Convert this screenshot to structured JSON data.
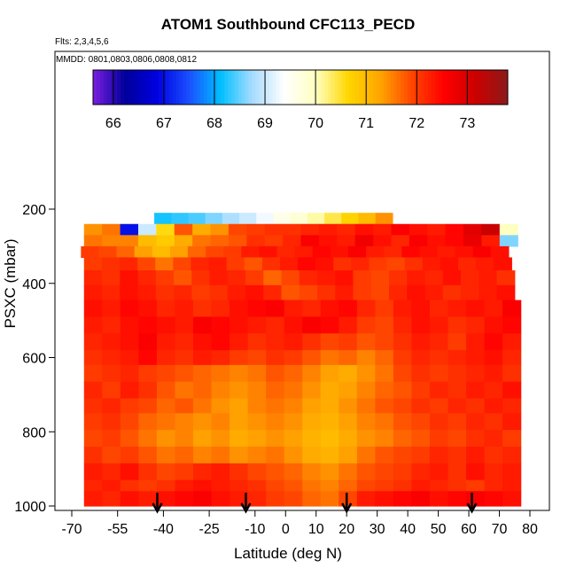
{
  "header": {
    "title": "ATOM1 Southbound CFC113_PECD",
    "flights": "Flts: 2,3,4,5,6",
    "dates": "MMDD: 0801,0803,0806,0808,0812"
  },
  "chart_data": {
    "type": "heatmap",
    "title": "ATOM1 Southbound CFC113_PECD",
    "xlabel": "Latitude (deg N)",
    "ylabel": "PSXC (mbar)",
    "xlim": [
      -70,
      80
    ],
    "ylim": [
      1000,
      0
    ],
    "x_ticks": [
      -70,
      -55,
      -40,
      -25,
      -10,
      0,
      10,
      20,
      30,
      40,
      50,
      60,
      70,
      80
    ],
    "y_ticks": [
      200,
      400,
      600,
      800,
      1000
    ],
    "colorbar": {
      "ticks": [
        66,
        67,
        68,
        69,
        70,
        71,
        72,
        73
      ],
      "range": [
        65.6,
        73.8
      ],
      "colors": [
        "#7b1fe0",
        "#00009a",
        "#0000e0",
        "#1a4fff",
        "#00bfff",
        "#a8dcff",
        "#ffffff",
        "#ffffbf",
        "#ffd700",
        "#ffa500",
        "#ff4500",
        "#ff0000",
        "#cc0000",
        "#8b1a1a"
      ]
    },
    "arrows_latitude": [
      -42,
      -13,
      20,
      61
    ],
    "layers": [
      {
        "p_top": 210,
        "p_bot": 240,
        "lat_min": -43,
        "lat_max": 35,
        "cells": [
          68.2,
          68.3,
          68.4,
          68.6,
          68.8,
          69.0,
          69.3,
          69.6,
          69.8,
          70.1,
          70.4,
          70.7,
          71.0,
          71.4
        ]
      },
      {
        "p_top": 240,
        "p_bot": 270,
        "lat_min": -66,
        "lat_max": 76,
        "cells": [
          71.4,
          71.6,
          67.0,
          69.0,
          70.6,
          71.8,
          71.2,
          71.4,
          71.9,
          72.0,
          72.1,
          72.1,
          72.2,
          72.3,
          72.2,
          72.4,
          72.3,
          72.6,
          72.4,
          72.3,
          72.5,
          72.9,
          73.2,
          70.0
        ]
      },
      {
        "p_top": 270,
        "p_bot": 300,
        "lat_min": -66,
        "lat_max": 76,
        "cells": [
          71.6,
          71.5,
          71.5,
          71.0,
          70.8,
          71.2,
          71.6,
          71.7,
          71.8,
          72.1,
          72.0,
          72.2,
          72.6,
          72.4,
          72.3,
          72.7,
          72.4,
          72.2,
          72.6,
          72.4,
          72.5,
          72.8,
          72.3,
          68.6
        ]
      },
      {
        "p_top": 300,
        "p_bot": 330,
        "lat_min": -67,
        "lat_max": 73,
        "cells": [
          72.0,
          71.9,
          71.7,
          71.3,
          71.0,
          71.3,
          71.7,
          71.9,
          72.0,
          72.3,
          72.4,
          72.2,
          72.3,
          72.5,
          72.4,
          72.6,
          72.3,
          72.2,
          72.5,
          72.4,
          72.3,
          72.4,
          72.6,
          72.4
        ]
      },
      {
        "p_top": 330,
        "p_bot": 365,
        "lat_min": -66,
        "lat_max": 74,
        "cells": [
          72.0,
          72.1,
          72.2,
          71.9,
          71.6,
          71.9,
          72.2,
          72.3,
          72.0,
          71.8,
          72.1,
          72.3,
          72.5,
          72.4,
          72.1,
          72.2,
          72.0,
          71.9,
          72.1,
          72.3,
          72.4,
          72.2,
          72.3,
          72.4
        ]
      },
      {
        "p_top": 365,
        "p_bot": 405,
        "lat_min": -66,
        "lat_max": 75,
        "cells": [
          72.2,
          72.1,
          72.4,
          72.2,
          72.0,
          71.8,
          72.1,
          72.3,
          72.2,
          72.0,
          71.7,
          71.9,
          72.2,
          72.3,
          72.4,
          72.0,
          71.9,
          72.1,
          72.3,
          72.2,
          72.4,
          72.2,
          72.3,
          72.1
        ]
      },
      {
        "p_top": 405,
        "p_bot": 445,
        "lat_min": -66,
        "lat_max": 75,
        "cells": [
          72.3,
          72.2,
          72.4,
          72.3,
          72.1,
          72.2,
          72.0,
          72.1,
          72.3,
          72.4,
          72.2,
          71.8,
          71.9,
          72.1,
          72.3,
          72.0,
          71.9,
          72.2,
          72.4,
          72.3,
          72.1,
          72.2,
          72.3,
          72.4
        ]
      },
      {
        "p_top": 445,
        "p_bot": 490,
        "lat_min": -66,
        "lat_max": 77,
        "cells": [
          72.4,
          72.3,
          72.5,
          72.4,
          72.2,
          72.3,
          72.1,
          72.2,
          72.4,
          72.5,
          72.6,
          72.3,
          72.2,
          72.4,
          72.5,
          72.2,
          72.0,
          72.3,
          72.4,
          72.2,
          72.3,
          72.4,
          72.3,
          72.6
        ]
      },
      {
        "p_top": 490,
        "p_bot": 535,
        "lat_min": -66,
        "lat_max": 77,
        "cells": [
          72.3,
          72.2,
          72.4,
          72.5,
          72.4,
          72.3,
          72.6,
          72.5,
          72.4,
          72.3,
          72.2,
          72.4,
          72.6,
          72.5,
          72.3,
          72.0,
          71.9,
          72.2,
          72.4,
          72.3,
          72.1,
          72.2,
          72.4,
          72.5
        ]
      },
      {
        "p_top": 535,
        "p_bot": 580,
        "lat_min": -66,
        "lat_max": 77,
        "cells": [
          72.2,
          72.3,
          72.4,
          72.6,
          72.3,
          72.2,
          72.4,
          72.5,
          72.3,
          72.1,
          72.2,
          72.3,
          72.1,
          71.9,
          72.0,
          71.8,
          71.9,
          72.1,
          72.3,
          72.2,
          72.0,
          72.3,
          72.5,
          72.3
        ]
      },
      {
        "p_top": 580,
        "p_bot": 620,
        "lat_min": -66,
        "lat_max": 77,
        "cells": [
          72.1,
          72.2,
          72.3,
          72.5,
          72.2,
          72.1,
          72.3,
          72.2,
          72.0,
          71.9,
          72.1,
          72.0,
          71.8,
          71.6,
          71.7,
          71.5,
          71.7,
          72.0,
          72.2,
          72.1,
          72.2,
          72.3,
          72.4,
          72.2
        ]
      },
      {
        "p_top": 620,
        "p_bot": 665,
        "lat_min": -66,
        "lat_max": 77,
        "cells": [
          72.0,
          72.1,
          72.2,
          72.0,
          71.9,
          71.8,
          71.7,
          71.6,
          71.5,
          71.6,
          71.8,
          71.7,
          71.5,
          71.3,
          71.2,
          71.4,
          71.6,
          71.9,
          72.1,
          72.0,
          72.1,
          72.2,
          72.3,
          72.1
        ]
      },
      {
        "p_top": 665,
        "p_bot": 710,
        "lat_min": -66,
        "lat_max": 77,
        "cells": [
          72.2,
          72.0,
          72.3,
          72.1,
          71.8,
          71.6,
          71.7,
          71.5,
          71.4,
          71.5,
          71.7,
          71.6,
          71.4,
          71.2,
          71.3,
          71.5,
          71.7,
          71.8,
          72.0,
          72.2,
          72.1,
          72.3,
          72.2,
          72.4
        ]
      },
      {
        "p_top": 710,
        "p_bot": 750,
        "lat_min": -66,
        "lat_max": 77,
        "cells": [
          72.1,
          72.2,
          72.0,
          71.9,
          71.7,
          71.8,
          71.6,
          71.4,
          71.3,
          71.5,
          71.6,
          71.5,
          71.3,
          71.2,
          71.4,
          71.6,
          71.8,
          71.9,
          72.1,
          72.0,
          72.2,
          72.1,
          72.3,
          72.2
        ]
      },
      {
        "p_top": 750,
        "p_bot": 795,
        "lat_min": -66,
        "lat_max": 77,
        "cells": [
          72.0,
          72.1,
          71.9,
          71.7,
          71.6,
          71.5,
          71.4,
          71.5,
          71.3,
          71.4,
          71.5,
          71.4,
          71.2,
          71.1,
          71.3,
          71.5,
          71.6,
          71.8,
          71.9,
          72.1,
          72.0,
          72.2,
          72.1,
          72.3
        ]
      },
      {
        "p_top": 795,
        "p_bot": 840,
        "lat_min": -66,
        "lat_max": 77,
        "cells": [
          71.9,
          72.0,
          71.8,
          71.6,
          71.4,
          71.5,
          71.3,
          71.4,
          71.2,
          71.3,
          71.4,
          71.3,
          71.1,
          71.0,
          71.2,
          71.4,
          71.5,
          71.7,
          71.8,
          72.0,
          71.9,
          72.1,
          72.2,
          72.0
        ]
      },
      {
        "p_top": 840,
        "p_bot": 885,
        "lat_min": -66,
        "lat_max": 77,
        "cells": [
          72.1,
          71.9,
          72.0,
          71.8,
          71.6,
          71.7,
          71.5,
          71.6,
          71.4,
          71.5,
          71.6,
          71.4,
          71.2,
          71.1,
          71.3,
          71.6,
          71.8,
          71.9,
          72.0,
          72.2,
          72.1,
          72.3,
          72.1,
          72.2
        ]
      },
      {
        "p_top": 885,
        "p_bot": 930,
        "lat_min": -66,
        "lat_max": 77,
        "cells": [
          72.3,
          72.2,
          72.4,
          72.1,
          71.9,
          72.0,
          72.2,
          72.3,
          72.1,
          71.9,
          71.8,
          71.7,
          71.5,
          71.4,
          71.6,
          71.8,
          71.9,
          72.0,
          72.2,
          72.3,
          72.1,
          72.4,
          72.2,
          72.3
        ]
      },
      {
        "p_top": 930,
        "p_bot": 960,
        "lat_min": -66,
        "lat_max": 77,
        "cells": [
          72.2,
          72.3,
          72.1,
          72.0,
          72.1,
          72.3,
          72.4,
          72.3,
          72.2,
          72.1,
          71.9,
          71.8,
          71.6,
          71.5,
          71.7,
          71.9,
          72.0,
          72.1,
          72.3,
          72.2,
          72.1,
          72.0,
          72.2,
          72.3
        ]
      },
      {
        "p_top": 960,
        "p_bot": 1000,
        "lat_min": -66,
        "lat_max": 77,
        "cells": [
          72.3,
          72.2,
          72.4,
          72.3,
          72.4,
          72.5,
          72.6,
          72.4,
          72.3,
          72.2,
          72.0,
          71.9,
          71.7,
          71.6,
          71.9,
          72.3,
          72.4,
          72.5,
          72.6,
          72.4,
          72.5,
          72.6,
          72.5,
          72.4
        ]
      }
    ]
  }
}
